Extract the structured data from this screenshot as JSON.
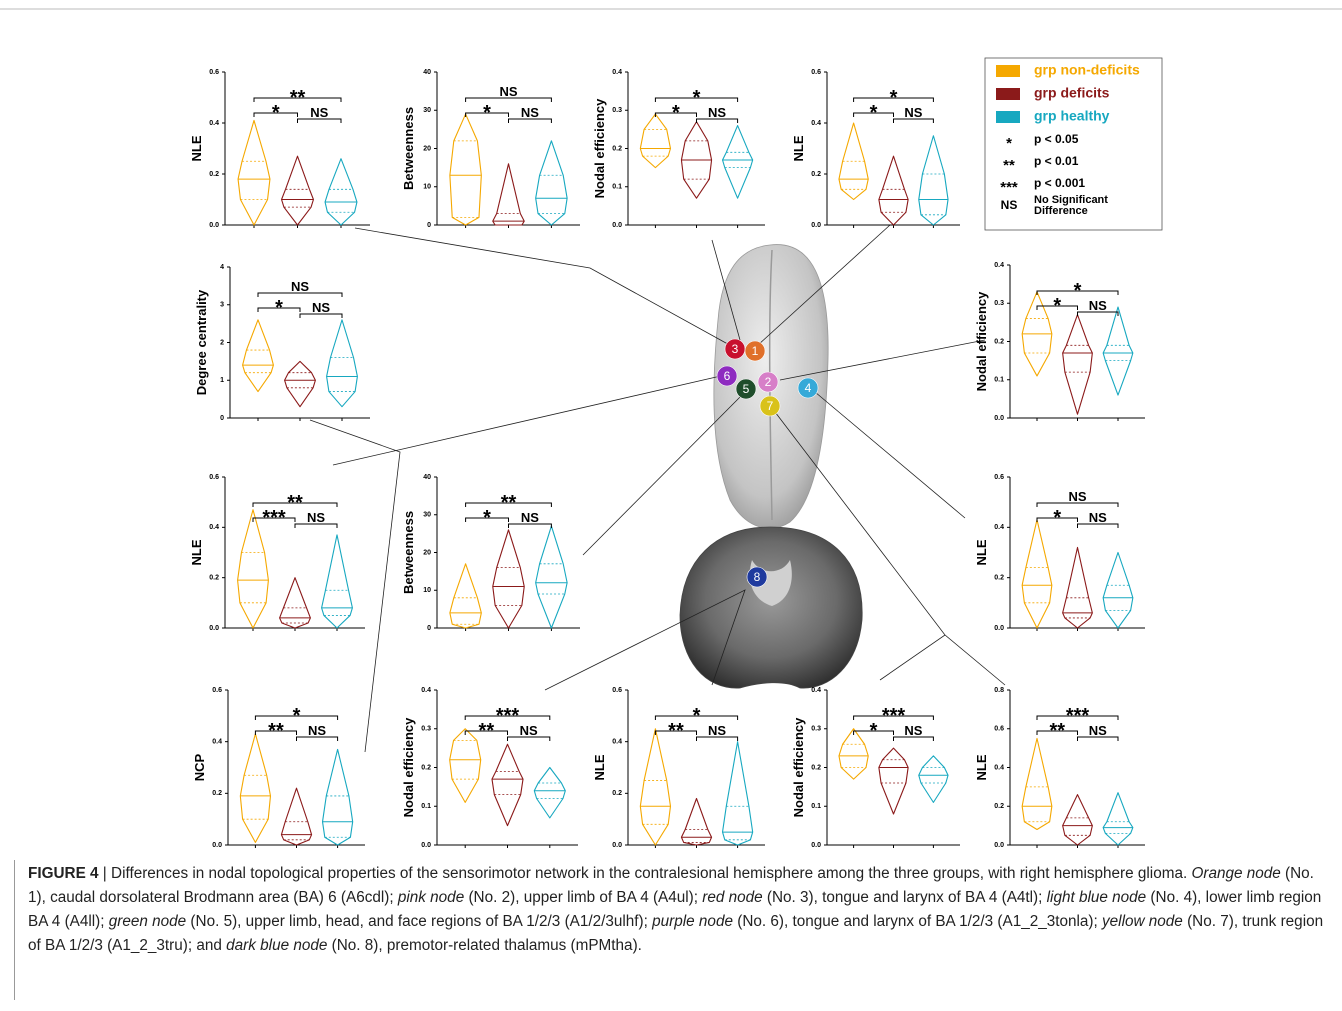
{
  "legend": {
    "series": [
      {
        "name": "grp non-deficits",
        "color": "#f5a800"
      },
      {
        "name": "grp deficits",
        "color": "#8b1a1a"
      },
      {
        "name": "grp healthy",
        "color": "#17a8c0"
      }
    ],
    "keys": [
      {
        "symbol": "*",
        "text": "p < 0.05"
      },
      {
        "symbol": "**",
        "text": "p < 0.01"
      },
      {
        "symbol": "***",
        "text": "p < 0.001"
      },
      {
        "symbol": "NS",
        "text": [
          "No  Significant",
          "Difference"
        ]
      }
    ]
  },
  "chart_data": [
    {
      "type": "violin",
      "ylabel": "NLE",
      "ylim": [
        0,
        0.6
      ],
      "yticks": [
        {
          "value": 0,
          "label": "0.0"
        },
        0.2,
        0.4,
        0.6
      ],
      "groups": [
        [
          0,
          0.1,
          0.18,
          0.25,
          0.41
        ],
        [
          0,
          0.07,
          0.1,
          0.14,
          0.27
        ],
        [
          0,
          0.05,
          0.09,
          0.14,
          0.26
        ]
      ],
      "sig": [
        "**",
        "*",
        "NS"
      ]
    },
    {
      "type": "violin",
      "ylabel": "Betweenness",
      "ylim": [
        0,
        40
      ],
      "yticks": [
        0,
        10,
        20,
        30,
        40
      ],
      "groups": [
        [
          0,
          2,
          13,
          22,
          29
        ],
        [
          0,
          0,
          1,
          3,
          16
        ],
        [
          0,
          3,
          7,
          13,
          22
        ]
      ],
      "sig": [
        "NS",
        "*",
        "NS"
      ]
    },
    {
      "type": "violin",
      "ylabel": "Nodal efficiency",
      "ylim": [
        0,
        0.4
      ],
      "yticks": [
        {
          "value": 0,
          "label": "0.0"
        },
        0.1,
        0.2,
        0.3,
        0.4
      ],
      "groups": [
        [
          0.15,
          0.18,
          0.2,
          0.25,
          0.29
        ],
        [
          0.07,
          0.12,
          0.17,
          0.22,
          0.27
        ],
        [
          0.07,
          0.15,
          0.17,
          0.19,
          0.26
        ]
      ],
      "sig": [
        "*",
        "*",
        "NS"
      ]
    },
    {
      "type": "violin",
      "ylabel": "NLE",
      "ylim": [
        0,
        0.6
      ],
      "yticks": [
        {
          "value": 0,
          "label": "0.0"
        },
        0.2,
        0.4,
        0.6
      ],
      "groups": [
        [
          0.1,
          0.14,
          0.18,
          0.25,
          0.4
        ],
        [
          0,
          0.05,
          0.1,
          0.14,
          0.27
        ],
        [
          0,
          0.04,
          0.1,
          0.2,
          0.35
        ]
      ],
      "sig": [
        "*",
        "*",
        "NS"
      ]
    },
    {
      "type": "violin",
      "ylabel": "Degree centrality",
      "ylim": [
        0,
        4
      ],
      "yticks": [
        0,
        1,
        2,
        3,
        4
      ],
      "groups": [
        [
          0.7,
          1.2,
          1.4,
          1.8,
          2.6
        ],
        [
          0.3,
          0.8,
          1,
          1.2,
          1.5
        ],
        [
          0.3,
          0.7,
          1.1,
          1.6,
          2.6
        ]
      ],
      "sig": [
        "NS",
        "*",
        "NS"
      ]
    },
    {
      "type": "violin",
      "ylabel": "Nodal efficiency",
      "ylim": [
        0,
        0.4
      ],
      "yticks": [
        {
          "value": 0,
          "label": "0.0"
        },
        0.1,
        0.2,
        0.3,
        0.4
      ],
      "groups": [
        [
          0.11,
          0.17,
          0.22,
          0.26,
          0.33
        ],
        [
          0.01,
          0.12,
          0.17,
          0.19,
          0.27
        ],
        [
          0.06,
          0.15,
          0.17,
          0.19,
          0.29
        ]
      ],
      "sig": [
        "*",
        "*",
        "NS"
      ]
    },
    {
      "type": "violin",
      "ylabel": "NLE",
      "ylim": [
        0,
        0.6
      ],
      "yticks": [
        {
          "value": 0,
          "label": "0.0"
        },
        0.2,
        0.4,
        0.6
      ],
      "groups": [
        [
          0,
          0.1,
          0.19,
          0.3,
          0.47
        ],
        [
          0,
          0.02,
          0.04,
          0.08,
          0.2
        ],
        [
          0,
          0.05,
          0.08,
          0.15,
          0.37
        ]
      ],
      "sig": [
        "**",
        "***",
        "NS"
      ]
    },
    {
      "type": "violin",
      "ylabel": "Betweenness",
      "ylim": [
        0,
        40
      ],
      "yticks": [
        0,
        10,
        20,
        30,
        40
      ],
      "groups": [
        [
          0,
          1,
          4,
          8,
          17
        ],
        [
          0,
          6,
          11,
          16,
          26
        ],
        [
          0,
          9,
          12,
          17,
          27
        ]
      ],
      "sig": [
        "**",
        "*",
        "NS"
      ]
    },
    {
      "type": "violin",
      "ylabel": "NLE",
      "ylim": [
        0,
        0.6
      ],
      "yticks": [
        {
          "value": 0,
          "label": "0.0"
        },
        0.2,
        0.4,
        0.6
      ],
      "groups": [
        [
          0,
          0.1,
          0.17,
          0.24,
          0.43
        ],
        [
          0,
          0.04,
          0.06,
          0.12,
          0.32
        ],
        [
          0,
          0.07,
          0.12,
          0.17,
          0.3
        ]
      ],
      "sig": [
        "NS",
        "*",
        "NS"
      ]
    },
    {
      "type": "violin",
      "ylabel": "NCP",
      "ylim": [
        0,
        0.6
      ],
      "yticks": [
        {
          "value": 0,
          "label": "0.0"
        },
        0.2,
        0.4,
        0.6
      ],
      "groups": [
        [
          0.01,
          0.1,
          0.19,
          0.27,
          0.43
        ],
        [
          0,
          0.02,
          0.04,
          0.09,
          0.22
        ],
        [
          0,
          0.03,
          0.09,
          0.19,
          0.37
        ]
      ],
      "sig": [
        "*",
        "**",
        "NS"
      ]
    },
    {
      "type": "violin",
      "ylabel": "Nodal efficiency",
      "ylim": [
        0,
        0.4
      ],
      "yticks": [
        {
          "value": 0,
          "label": "0.0"
        },
        0.1,
        0.2,
        0.3,
        0.4
      ],
      "groups": [
        [
          0.11,
          0.17,
          0.22,
          0.27,
          0.3
        ],
        [
          0.05,
          0.13,
          0.17,
          0.19,
          0.26
        ],
        [
          0.07,
          0.12,
          0.14,
          0.16,
          0.2
        ]
      ],
      "sig": [
        "***",
        "**",
        "NS"
      ]
    },
    {
      "type": "violin",
      "ylabel": "NLE",
      "ylim": [
        0,
        0.6
      ],
      "yticks": [
        {
          "value": 0,
          "label": "0.0"
        },
        0.2,
        0.4,
        0.6
      ],
      "groups": [
        [
          0,
          0.08,
          0.15,
          0.25,
          0.45
        ],
        [
          0,
          0.01,
          0.03,
          0.06,
          0.18
        ],
        [
          0,
          0.02,
          0.05,
          0.15,
          0.4
        ]
      ],
      "sig": [
        "*",
        "**",
        "NS"
      ]
    },
    {
      "type": "violin",
      "ylabel": "Nodal efficiency",
      "ylim": [
        0,
        0.4
      ],
      "yticks": [
        {
          "value": 0,
          "label": "0.0"
        },
        0.1,
        0.2,
        0.3,
        0.4
      ],
      "groups": [
        [
          0.17,
          0.2,
          0.23,
          0.26,
          0.3
        ],
        [
          0.08,
          0.16,
          0.2,
          0.22,
          0.25
        ],
        [
          0.11,
          0.16,
          0.18,
          0.2,
          0.23
        ]
      ],
      "sig": [
        "***",
        "*",
        "NS"
      ]
    },
    {
      "type": "violin",
      "ylabel": "NLE",
      "ylim": [
        0,
        0.8
      ],
      "yticks": [
        {
          "value": 0,
          "label": "0.0"
        },
        0.2,
        0.4,
        0.6,
        0.8
      ],
      "groups": [
        [
          0.08,
          0.12,
          0.2,
          0.3,
          0.55
        ],
        [
          0,
          0.05,
          0.1,
          0.14,
          0.26
        ],
        [
          0,
          0.06,
          0.09,
          0.12,
          0.27
        ]
      ],
      "sig": [
        "***",
        "**",
        "NS"
      ]
    }
  ],
  "nodes": [
    {
      "label": "3",
      "color": "#c8102e"
    },
    {
      "label": "1",
      "color": "#e0702a"
    },
    {
      "label": "6",
      "color": "#8e2bc0"
    },
    {
      "label": "2",
      "color": "#d77fc8"
    },
    {
      "label": "5",
      "color": "#1f4d2b"
    },
    {
      "label": "4",
      "color": "#35a9d8"
    },
    {
      "label": "7",
      "color": "#d9c21a"
    },
    {
      "label": "8",
      "color": "#1f3a9e"
    }
  ],
  "caption": {
    "label": "FIGURE 4",
    "segments": [
      " | Differences in nodal topological properties of the sensorimotor network in the contralesional hemisphere among the three groups, with right hemisphere glioma. ",
      "Orange node",
      " (No. 1), caudal dorsolateral Brodmann area (BA) 6 (A6cdl); ",
      "pink node",
      " (No. 2), upper limb of BA 4 (A4ul); ",
      "red node",
      " (No. 3), tongue and larynx of BA 4 (A4tl); ",
      "light blue node",
      " (No. 4), lower limb region BA 4 (A4ll); ",
      "green node",
      " (No. 5), upper limb, head, and face regions of BA 1/2/3 (A1/2/3ulhf); ",
      "purple node",
      " (No. 6), tongue and larynx of BA 1/2/3 (A1_2_3tonla); ",
      "yellow node",
      " (No. 7), trunk region of BA 1/2/3 (A1_2_3tru); and ",
      "dark blue node",
      " (No. 8), premotor-related thalamus (mPMtha)."
    ]
  }
}
